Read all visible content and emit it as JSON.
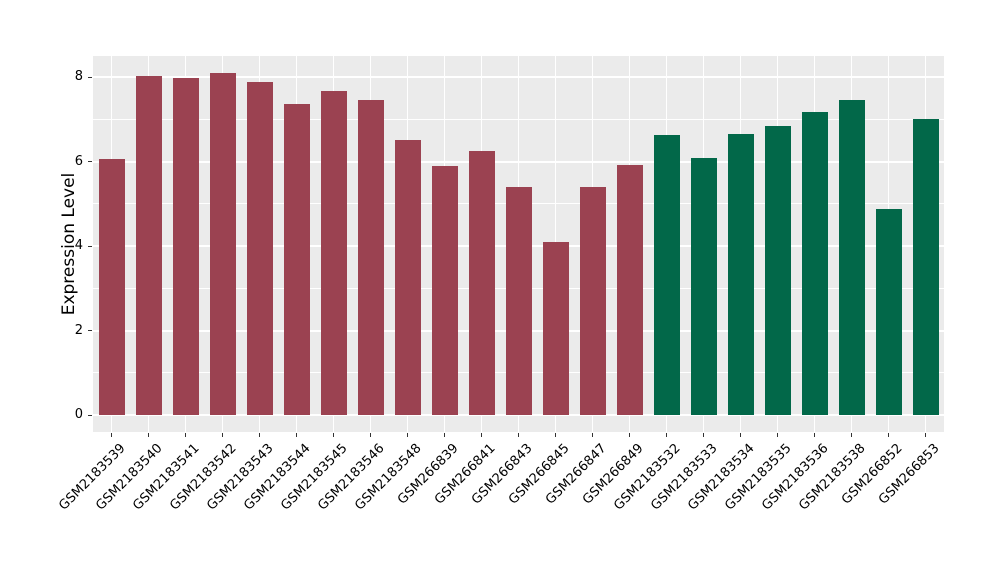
{
  "chart_data": {
    "type": "bar",
    "title": "",
    "xlabel": "",
    "ylabel": "Expression Level",
    "categories": [
      "GSM2183539",
      "GSM2183540",
      "GSM2183541",
      "GSM2183542",
      "GSM2183543",
      "GSM2183544",
      "GSM2183545",
      "GSM2183546",
      "GSM2183548",
      "GSM266839",
      "GSM266841",
      "GSM266843",
      "GSM266845",
      "GSM266847",
      "GSM266849",
      "GSM2183532",
      "GSM2183533",
      "GSM2183534",
      "GSM2183535",
      "GSM2183536",
      "GSM2183538",
      "GSM266852",
      "GSM266853"
    ],
    "values": [
      6.06,
      8.02,
      7.97,
      8.1,
      7.88,
      7.36,
      7.66,
      7.46,
      6.5,
      5.89,
      6.24,
      5.41,
      4.1,
      5.41,
      5.91,
      6.62,
      6.08,
      6.65,
      6.84,
      7.17,
      7.47,
      4.89,
      7.0
    ],
    "bar_colors": [
      "#9B4251",
      "#9B4251",
      "#9B4251",
      "#9B4251",
      "#9B4251",
      "#9B4251",
      "#9B4251",
      "#9B4251",
      "#9B4251",
      "#9B4251",
      "#9B4251",
      "#9B4251",
      "#9B4251",
      "#9B4251",
      "#9B4251",
      "#026849",
      "#026849",
      "#026849",
      "#026849",
      "#026849",
      "#026849",
      "#026849",
      "#026849"
    ],
    "yticks": [
      0,
      2,
      4,
      6,
      8
    ],
    "ytick_labels": [
      "0",
      "2",
      "4",
      "6",
      "8"
    ],
    "minor_yticks": [
      1,
      3,
      5,
      7
    ],
    "ylim": [
      -0.4,
      8.5
    ],
    "grid": true,
    "legend_position": "none",
    "style": {
      "panel_background": "#EBEBEB",
      "grid_color": "#FFFFFF",
      "tick_color": "#333333",
      "text_color": "#000000",
      "page_background": "#FFFFFF"
    }
  }
}
